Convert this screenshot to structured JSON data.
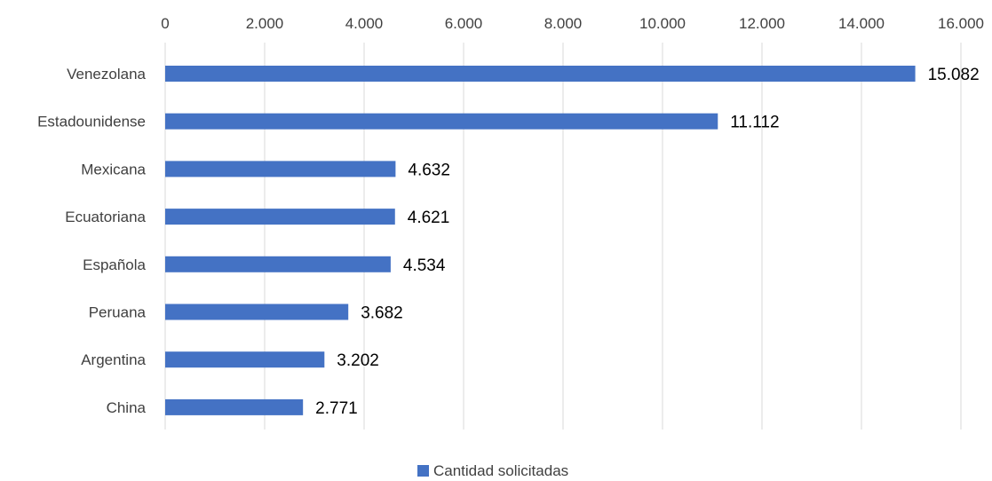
{
  "chart_data": {
    "type": "bar",
    "orientation": "horizontal",
    "categories": [
      "Venezolana",
      "Estadounidense",
      "Mexicana",
      "Ecuatoriana",
      "Española",
      "Peruana",
      "Argentina",
      "China"
    ],
    "series": [
      {
        "name": "Cantidad solicitadas",
        "values": [
          15082,
          11112,
          4632,
          4621,
          4534,
          3682,
          3202,
          2771
        ],
        "value_labels": [
          "15.082",
          "11.112",
          "4.632",
          "4.621",
          "4.534",
          "3.682",
          "3.202",
          "2.771"
        ],
        "color": "#4472C4"
      }
    ],
    "x_ticks": [
      0,
      2000,
      4000,
      6000,
      8000,
      10000,
      12000,
      14000,
      16000
    ],
    "x_tick_labels": [
      "0",
      "2.000",
      "4.000",
      "6.000",
      "8.000",
      "10.000",
      "12.000",
      "14.000",
      "16.000"
    ],
    "xlim": [
      0,
      16000
    ],
    "x_axis_position": "top",
    "grid": "vertical",
    "legend_position": "bottom",
    "colors": {
      "bar": "#4472C4",
      "grid": "#d9d9d9",
      "text": "#404040",
      "data_label": "#000000"
    }
  }
}
